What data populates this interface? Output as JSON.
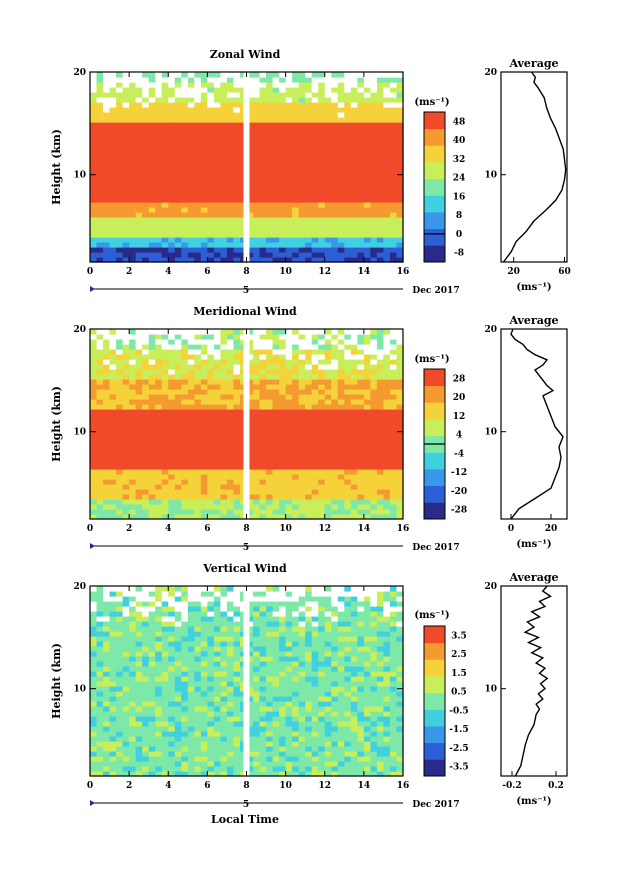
{
  "chart_data": [
    {
      "type": "heatmap",
      "title": "Zonal Wind",
      "ylabel": "Height (km)",
      "xlim": [
        0,
        16
      ],
      "ylim": [
        1.5,
        20
      ],
      "x_ticks": [
        "0",
        "2",
        "4",
        "6",
        "8",
        "10",
        "12",
        "14",
        "16"
      ],
      "y_ticks": [
        "10",
        "20"
      ],
      "date_bar": {
        "marker": "5",
        "label": "Dec 2017"
      },
      "colorbar": {
        "unit_label": "(ms⁻¹)",
        "levels": [
          "48",
          "40",
          "32",
          "24",
          "16",
          "8",
          "0",
          "-8"
        ],
        "range": [
          -12,
          52
        ],
        "zero_line": 0
      },
      "field": {
        "gap_x": 8,
        "description_layers": [
          {
            "height": [
              1.5,
              2.5
            ],
            "value": -4
          },
          {
            "height": [
              2.5,
              3.5
            ],
            "value": 10
          },
          {
            "height": [
              3.5,
              5.5
            ],
            "value": 28
          },
          {
            "height": [
              5.5,
              7
            ],
            "value": 40
          },
          {
            "height": [
              7,
              15
            ],
            "value": 50
          },
          {
            "height": [
              15,
              17
            ],
            "value": 34
          },
          {
            "height": [
              17,
              19
            ],
            "value": 26
          },
          {
            "height": [
              19,
              20
            ],
            "value": 20
          }
        ]
      },
      "average": {
        "title": "Average",
        "xlabel": "(ms⁻¹)",
        "x_ticks": [
          "20",
          "60"
        ],
        "xlim": [
          10,
          62
        ],
        "ylim": [
          1.5,
          20
        ],
        "y_ticks": [
          "10",
          "20"
        ],
        "profile": [
          [
            12,
            1.5
          ],
          [
            18,
            2.5
          ],
          [
            22,
            3.5
          ],
          [
            30,
            4.5
          ],
          [
            36,
            5.5
          ],
          [
            45,
            6.5
          ],
          [
            53,
            7.5
          ],
          [
            58,
            8.5
          ],
          [
            60,
            9.5
          ],
          [
            61,
            10.5
          ],
          [
            60,
            11.5
          ],
          [
            59,
            12.5
          ],
          [
            56,
            13.5
          ],
          [
            53,
            14.5
          ],
          [
            49,
            15.5
          ],
          [
            46,
            16.5
          ],
          [
            44,
            17.5
          ],
          [
            39,
            18.5
          ],
          [
            36,
            19
          ],
          [
            37,
            19.5
          ],
          [
            34,
            20
          ]
        ]
      }
    },
    {
      "type": "heatmap",
      "title": "Meridional Wind",
      "ylabel": "Height (km)",
      "xlim": [
        0,
        16
      ],
      "ylim": [
        1.5,
        20
      ],
      "x_ticks": [
        "0",
        "2",
        "4",
        "6",
        "8",
        "10",
        "12",
        "14",
        "16"
      ],
      "y_ticks": [
        "10",
        "20"
      ],
      "date_bar": {
        "marker": "5",
        "label": "Dec 2017"
      },
      "colorbar": {
        "unit_label": "(ms⁻¹)",
        "levels": [
          "28",
          "20",
          "12",
          "4",
          "-4",
          "-12",
          "-20",
          "-28"
        ],
        "range": [
          -32,
          32
        ],
        "zero_line": 0
      },
      "field": {
        "gap_x": 8,
        "description_layers": [
          {
            "height": [
              1.5,
              3
            ],
            "value": 4
          },
          {
            "height": [
              3,
              6
            ],
            "value": 16
          },
          {
            "height": [
              6,
              12
            ],
            "value": 28
          },
          {
            "height": [
              12,
              15
            ],
            "value": 18
          },
          {
            "height": [
              15,
              18
            ],
            "value": 10
          },
          {
            "height": [
              18,
              20
            ],
            "value": 4
          }
        ]
      },
      "average": {
        "title": "Average",
        "xlabel": "(ms⁻¹)",
        "x_ticks": [
          "0",
          "20"
        ],
        "xlim": [
          -5,
          28
        ],
        "ylim": [
          1.5,
          20
        ],
        "y_ticks": [
          "10",
          "20"
        ],
        "profile": [
          [
            0,
            1.5
          ],
          [
            4,
            2.5
          ],
          [
            12,
            3.5
          ],
          [
            20,
            4.5
          ],
          [
            22,
            5.5
          ],
          [
            24,
            6.5
          ],
          [
            25,
            7.5
          ],
          [
            24,
            8.5
          ],
          [
            26,
            9.5
          ],
          [
            22,
            10.5
          ],
          [
            20,
            11.5
          ],
          [
            18,
            12.5
          ],
          [
            16,
            13.5
          ],
          [
            21,
            14
          ],
          [
            18,
            14.5
          ],
          [
            14,
            15.5
          ],
          [
            12,
            16
          ],
          [
            16,
            16.5
          ],
          [
            18,
            17
          ],
          [
            12,
            17.5
          ],
          [
            8,
            18
          ],
          [
            6,
            18.5
          ],
          [
            2,
            19
          ],
          [
            0,
            19.5
          ],
          [
            1,
            20
          ]
        ]
      }
    },
    {
      "type": "heatmap",
      "title": "Vertical Wind",
      "ylabel": "Height (km)",
      "xlabel": "Local Time",
      "xlim": [
        0,
        16
      ],
      "ylim": [
        1.5,
        20
      ],
      "x_ticks": [
        "0",
        "2",
        "4",
        "6",
        "8",
        "10",
        "12",
        "14",
        "16"
      ],
      "y_ticks": [
        "10",
        "20"
      ],
      "date_bar": {
        "marker": "5",
        "label": "Dec 2017"
      },
      "colorbar": {
        "unit_label": "(ms⁻¹)",
        "levels": [
          "3.5",
          "2.5",
          "1.5",
          "0.5",
          "-0.5",
          "-1.5",
          "-2.5",
          "-3.5"
        ],
        "range": [
          -4,
          4
        ],
        "zero_line": null
      },
      "field": {
        "gap_x": 8,
        "description_layers": [
          {
            "height": [
              1.5,
              20
            ],
            "value": 0
          }
        ]
      },
      "average": {
        "title": "Average",
        "xlabel": "(ms⁻¹)",
        "x_ticks": [
          "-0.2",
          "0.2"
        ],
        "xlim": [
          -0.3,
          0.3
        ],
        "ylim": [
          1.5,
          20
        ],
        "y_ticks": [
          "10",
          "20"
        ],
        "profile": [
          [
            -0.17,
            1.5
          ],
          [
            -0.12,
            2.5
          ],
          [
            -0.1,
            3.5
          ],
          [
            -0.08,
            4.5
          ],
          [
            -0.05,
            5.5
          ],
          [
            0.0,
            6.5
          ],
          [
            0.02,
            7.5
          ],
          [
            0.05,
            8
          ],
          [
            0.02,
            8.5
          ],
          [
            0.08,
            9
          ],
          [
            0.04,
            9.5
          ],
          [
            0.1,
            10
          ],
          [
            0.06,
            10.5
          ],
          [
            0.12,
            11
          ],
          [
            0.05,
            11.5
          ],
          [
            0.1,
            12
          ],
          [
            0.02,
            12.5
          ],
          [
            0.08,
            13
          ],
          [
            -0.02,
            13.5
          ],
          [
            0.06,
            14
          ],
          [
            -0.05,
            14.5
          ],
          [
            0.04,
            15
          ],
          [
            -0.08,
            15.5
          ],
          [
            0.0,
            16
          ],
          [
            -0.06,
            16.5
          ],
          [
            0.05,
            17
          ],
          [
            -0.02,
            17.5
          ],
          [
            0.1,
            18
          ],
          [
            0.05,
            18.5
          ],
          [
            0.15,
            19
          ],
          [
            0.08,
            19.5
          ],
          [
            0.12,
            20
          ]
        ]
      }
    }
  ]
}
